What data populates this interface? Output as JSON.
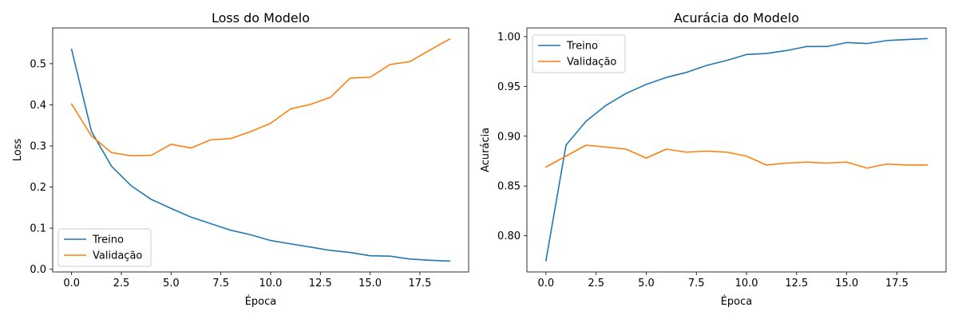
{
  "colors": {
    "train": "#1f77b4",
    "validation": "#ff7f0e",
    "axes": "#000000",
    "legend_border": "#cccccc"
  },
  "chart_data": [
    {
      "type": "line",
      "title": "Loss do Modelo",
      "xlabel": "Época",
      "ylabel": "Loss",
      "xlim": [
        -0.95,
        19.95
      ],
      "ylim": [
        -0.0064,
        0.587
      ],
      "xticks": [
        0.0,
        2.5,
        5.0,
        7.5,
        10.0,
        12.5,
        15.0,
        17.5
      ],
      "xtick_labels": [
        "0.0",
        "2.5",
        "5.0",
        "7.5",
        "10.0",
        "12.5",
        "15.0",
        "17.5"
      ],
      "yticks": [
        0.0,
        0.1,
        0.2,
        0.3,
        0.4,
        0.5
      ],
      "ytick_labels": [
        "0.0",
        "0.1",
        "0.2",
        "0.3",
        "0.4",
        "0.5"
      ],
      "grid": false,
      "legend_position": "lower-left",
      "x": [
        0,
        1,
        2,
        3,
        4,
        5,
        6,
        7,
        8,
        9,
        10,
        11,
        12,
        13,
        14,
        15,
        16,
        17,
        18,
        19
      ],
      "series": [
        {
          "name": "Treino",
          "color_key": "train",
          "values": [
            0.535,
            0.335,
            0.251,
            0.203,
            0.17,
            0.148,
            0.127,
            0.111,
            0.095,
            0.084,
            0.07,
            0.062,
            0.054,
            0.046,
            0.041,
            0.033,
            0.032,
            0.025,
            0.022,
            0.02
          ]
        },
        {
          "name": "Validação",
          "color_key": "validation",
          "values": [
            0.402,
            0.324,
            0.284,
            0.276,
            0.277,
            0.304,
            0.295,
            0.315,
            0.318,
            0.335,
            0.355,
            0.39,
            0.401,
            0.418,
            0.465,
            0.467,
            0.498,
            0.505,
            0.533,
            0.56
          ]
        }
      ]
    },
    {
      "type": "line",
      "title": "Acurácia do Modelo",
      "xlabel": "Época",
      "ylabel": "Acurácia",
      "xlim": [
        -0.95,
        19.95
      ],
      "ylim": [
        0.7637,
        1.0087
      ],
      "xticks": [
        0.0,
        2.5,
        5.0,
        7.5,
        10.0,
        12.5,
        15.0,
        17.5
      ],
      "xtick_labels": [
        "0.0",
        "2.5",
        "5.0",
        "7.5",
        "10.0",
        "12.5",
        "15.0",
        "17.5"
      ],
      "yticks": [
        0.8,
        0.85,
        0.9,
        0.95,
        1.0
      ],
      "ytick_labels": [
        "0.80",
        "0.85",
        "0.90",
        "0.95",
        "1.00"
      ],
      "grid": false,
      "legend_position": "upper-left",
      "x": [
        0,
        1,
        2,
        3,
        4,
        5,
        6,
        7,
        8,
        9,
        10,
        11,
        12,
        13,
        14,
        15,
        16,
        17,
        18,
        19
      ],
      "series": [
        {
          "name": "Treino",
          "color_key": "train",
          "values": [
            0.775,
            0.891,
            0.915,
            0.931,
            0.943,
            0.952,
            0.959,
            0.964,
            0.971,
            0.976,
            0.982,
            0.983,
            0.986,
            0.99,
            0.99,
            0.994,
            0.993,
            0.996,
            0.997,
            0.998
          ]
        },
        {
          "name": "Validação",
          "color_key": "validation",
          "values": [
            0.869,
            0.88,
            0.891,
            0.889,
            0.887,
            0.878,
            0.887,
            0.884,
            0.885,
            0.884,
            0.88,
            0.871,
            0.873,
            0.874,
            0.873,
            0.874,
            0.868,
            0.872,
            0.871,
            0.871
          ]
        }
      ]
    }
  ]
}
